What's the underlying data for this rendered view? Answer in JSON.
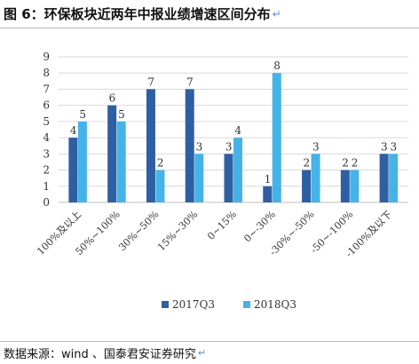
{
  "header": {
    "title": "图 6：环保板块近两年中报业绩增速区间分布",
    "title_suffix": "↵"
  },
  "footer": {
    "source": "数据来源：wind 、国泰君安证券研究",
    "source_suffix": "↵"
  },
  "colors": {
    "series_2017": "#2e5fa3",
    "series_2018": "#45b3e8",
    "grid": "#d9d9d9",
    "axis": "#bfbfbf"
  },
  "chart_data": {
    "type": "bar",
    "title": "",
    "xlabel": "",
    "ylabel": "",
    "ylim": [
      0,
      9
    ],
    "yticks": [
      0,
      1,
      2,
      3,
      4,
      5,
      6,
      7,
      8,
      9
    ],
    "grid": true,
    "legend_position": "bottom",
    "categories": [
      "100%及以上",
      "50%~100%",
      "30%~50%",
      "15%~30%",
      "0~15%",
      "0~-30%",
      "-30%~-50%",
      "-50~-100%",
      "-100%及以下"
    ],
    "series": [
      {
        "name": "2017Q3",
        "values": [
          4,
          6,
          7,
          7,
          3,
          1,
          2,
          2,
          3
        ]
      },
      {
        "name": "2018Q3",
        "values": [
          5,
          5,
          2,
          3,
          4,
          8,
          3,
          2,
          3
        ]
      }
    ]
  }
}
